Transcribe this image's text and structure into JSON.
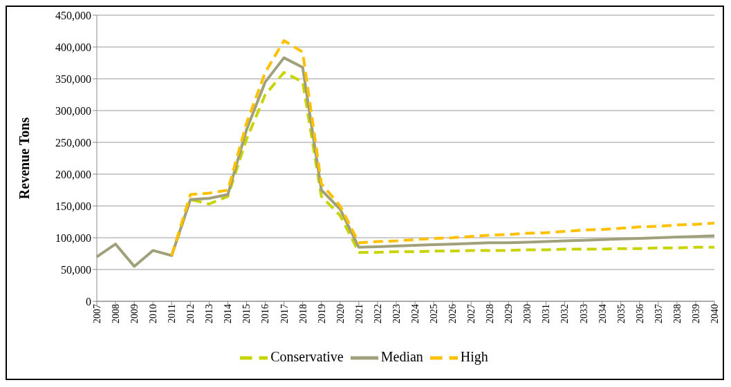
{
  "chart_data": {
    "type": "line",
    "ylabel": "Revenue Tons",
    "categories": [
      "2007",
      "2008",
      "2009",
      "2010",
      "2011",
      "2012",
      "2013",
      "2014",
      "2015",
      "2016",
      "2017",
      "2018",
      "2019",
      "2020",
      "2021",
      "2022",
      "2023",
      "2024",
      "2025",
      "2026",
      "2027",
      "2028",
      "2029",
      "2030",
      "2031",
      "2032",
      "2033",
      "2034",
      "2035",
      "2036",
      "2037",
      "2038",
      "2039",
      "2040"
    ],
    "series": [
      {
        "name": "Conservative",
        "color": "#c8d400",
        "line_style": "dashed",
        "values": [
          null,
          null,
          null,
          null,
          72000,
          160000,
          153000,
          165000,
          255000,
          325000,
          360000,
          345000,
          165000,
          135000,
          77000,
          77000,
          78000,
          78000,
          79000,
          79000,
          80000,
          80000,
          80000,
          81000,
          81000,
          82000,
          82000,
          82000,
          83000,
          83000,
          84000,
          84000,
          85000,
          85000
        ]
      },
      {
        "name": "Median",
        "color": "#a0a07a",
        "line_style": "solid",
        "values": [
          70000,
          90000,
          55000,
          80000,
          72000,
          160000,
          162000,
          168000,
          270000,
          345000,
          383000,
          368000,
          175000,
          145000,
          85000,
          86000,
          87000,
          88000,
          89000,
          90000,
          91000,
          92000,
          92000,
          93000,
          94000,
          95000,
          96000,
          97000,
          98000,
          99000,
          100000,
          101000,
          102000,
          103000
        ]
      },
      {
        "name": "High",
        "color": "#ffc000",
        "line_style": "dashed",
        "values": [
          null,
          null,
          null,
          null,
          72000,
          168000,
          170000,
          175000,
          280000,
          360000,
          410000,
          392000,
          185000,
          150000,
          92000,
          94000,
          95000,
          97000,
          99000,
          100000,
          102000,
          104000,
          105000,
          107000,
          108000,
          110000,
          112000,
          113000,
          115000,
          117000,
          118000,
          120000,
          121000,
          123000
        ]
      }
    ],
    "ylim": [
      0,
      450000
    ],
    "yticks": [
      0,
      {
        "value": 50000,
        "label": "50,000"
      },
      {
        "value": 100000,
        "label": "100,000"
      },
      {
        "value": 150000,
        "label": "150,000"
      },
      {
        "value": 200000,
        "label": "200,000"
      },
      {
        "value": 250000,
        "label": "250,000"
      },
      {
        "value": 300000,
        "label": "300,000"
      },
      {
        "value": 350000,
        "label": "350,000"
      },
      {
        "value": 400000,
        "label": "400,000"
      },
      {
        "value": 450000,
        "label": "450,000"
      }
    ],
    "grid": "y",
    "legend": "bottom",
    "marker": "none"
  }
}
